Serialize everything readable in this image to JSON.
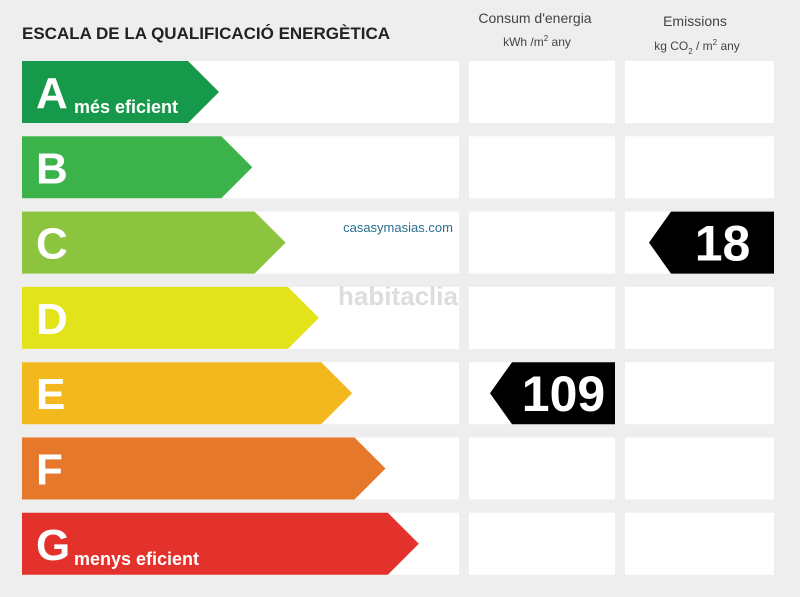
{
  "header": {
    "title": "ESCALA DE LA QUALIFICACIÓ ENERGÈTICA"
  },
  "columns": [
    {
      "title": "Consum d'energia",
      "unit": [
        "kWh /m",
        "2",
        " any"
      ],
      "rating": "E",
      "value": "109"
    },
    {
      "title": "Emissions",
      "unit": [
        "kg CO",
        "2",
        " / m",
        "2",
        " any"
      ],
      "rating": "C",
      "value": "18"
    }
  ],
  "ratings": [
    {
      "letter": "A",
      "note": "més eficient",
      "color": "#16994a"
    },
    {
      "letter": "B",
      "color": "#3bb34a"
    },
    {
      "letter": "C",
      "color": "#8cc43f"
    },
    {
      "letter": "D",
      "color": "#e3e31c"
    },
    {
      "letter": "E",
      "color": "#f2b81e"
    },
    {
      "letter": "F",
      "color": "#e5782a"
    },
    {
      "letter": "G",
      "note": "menys eficient",
      "color": "#e3312b"
    }
  ],
  "watermarks": [
    "casasymasias.com",
    "habitaclia"
  ]
}
